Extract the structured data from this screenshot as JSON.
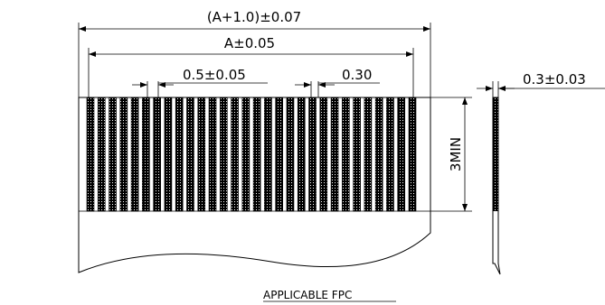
{
  "drawing": {
    "title": "APPLICABLE FPC",
    "dim_overall": "(A+1.0)±0.07",
    "dim_contact_span": "A±0.05",
    "dim_pitch": "0.5±0.05",
    "dim_contact_width": "0.30",
    "dim_contact_length": "3MIN",
    "dim_thickness": "0.3±0.03",
    "contact_count": 30,
    "colors": {
      "line": "#000000",
      "background": "#ffffff"
    }
  }
}
